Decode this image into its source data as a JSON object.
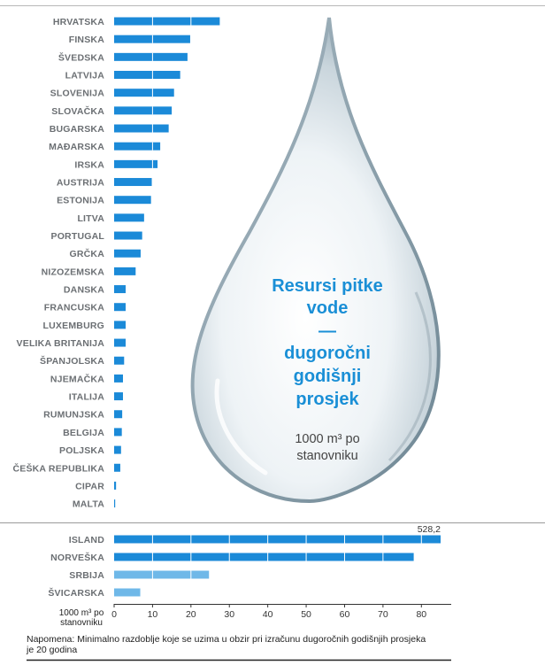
{
  "chart_data": {
    "type": "bar",
    "orientation": "horizontal",
    "title": [
      "Resursi pitke",
      "vode",
      "—",
      "dugoročni",
      "godišnji",
      "prosjek"
    ],
    "subtitle": [
      "1000 m³ po",
      "stanovniku"
    ],
    "xlabel": [
      "1000 m³ po",
      "stanovniku"
    ],
    "xlim": [
      0,
      85
    ],
    "xticks": [
      0,
      10,
      20,
      30,
      40,
      50,
      60,
      70,
      80
    ],
    "groups": [
      {
        "color": "#1b8ad8",
        "categories": [
          "HRVATSKA",
          "FINSKA",
          "ŠVEDSKA",
          "LATVIJA",
          "SLOVENIJA",
          "SLOVAČKA",
          "BUGARSKA",
          "MAĐARSKA",
          "IRSKA",
          "AUSTRIJA",
          "ESTONIJA",
          "LITVA",
          "PORTUGAL",
          "GRČKA",
          "NIZOZEMSKA",
          "DANSKA",
          "FRANCUSKA",
          "LUXEMBURG",
          "VELIKA BRITANIJA",
          "ŠPANJOLSKA",
          "NJEMAČKA",
          "ITALIJA",
          "RUMUNJSKA",
          "BELGIJA",
          "POLJSKA",
          "ČEŠKA REPUBLIKA",
          "CIPAR",
          "MALTA"
        ],
        "values": [
          27.5,
          19.8,
          19.1,
          17.2,
          15.6,
          15.0,
          14.2,
          12.0,
          11.3,
          9.8,
          9.6,
          7.8,
          7.3,
          6.9,
          5.6,
          3.0,
          3.0,
          3.0,
          3.0,
          2.6,
          2.3,
          2.3,
          2.1,
          2.0,
          1.8,
          1.6,
          0.5,
          0.2
        ]
      },
      {
        "color": "#1b8ad8",
        "categories": [
          "ISLAND",
          "NORVEŠKA"
        ],
        "values": [
          85,
          78
        ],
        "value_labels": [
          "528,2",
          ""
        ]
      },
      {
        "color": "#6fb8e8",
        "categories": [
          "SRBIJA",
          "ŠVICARSKA"
        ],
        "values": [
          24.7,
          6.8
        ]
      }
    ],
    "note": "Napomena: Minimalno razdoblje koje se uzima u obzir pri izračunu dugoročnih godišnjih prosjeka je 20 godina"
  }
}
